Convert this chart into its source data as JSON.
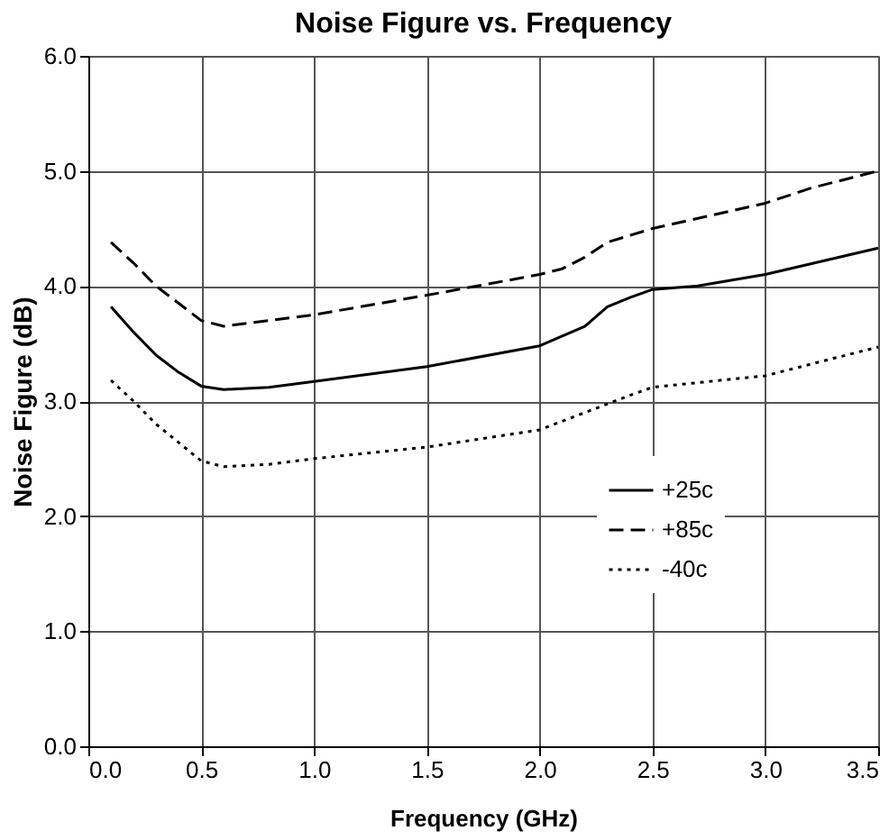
{
  "chart_data": {
    "type": "line",
    "title": "Noise Figure vs. Frequency",
    "xlabel": "Frequency (GHz)",
    "ylabel": "Noise Figure (dB)",
    "xlim": [
      0,
      3.5
    ],
    "xticks": [
      {
        "value": 0,
        "label": "0.0"
      },
      {
        "value": 0.5,
        "label": "0.5"
      },
      {
        "value": 1,
        "label": "1.0"
      },
      {
        "value": 1.5,
        "label": "1.5"
      },
      {
        "value": 2,
        "label": "2.0"
      },
      {
        "value": 2.5,
        "label": "2.5"
      },
      {
        "value": 3,
        "label": "3.0"
      },
      {
        "value": 3.5,
        "label": "3.5"
      }
    ],
    "ylim": [
      0,
      6
    ],
    "yticks": [
      {
        "value": 0,
        "label": "0.0"
      },
      {
        "value": 1,
        "label": "1.0"
      },
      {
        "value": 2,
        "label": "2.0"
      },
      {
        "value": 3,
        "label": "3.0"
      },
      {
        "value": 4,
        "label": "4.0"
      },
      {
        "value": 5,
        "label": "5.0"
      },
      {
        "value": 6,
        "label": "6.0"
      }
    ],
    "grid": true,
    "legend": "right",
    "marker": "none",
    "series": [
      {
        "name": "+25c",
        "color": "#000000",
        "line_style": "solid",
        "x": [
          0.1,
          0.2,
          0.3,
          0.4,
          0.5,
          0.6,
          0.8,
          1.0,
          1.5,
          2.0,
          2.2,
          2.3,
          2.4,
          2.5,
          2.7,
          3.0,
          3.5
        ],
        "values": [
          3.82,
          3.6,
          3.4,
          3.25,
          3.13,
          3.1,
          3.12,
          3.17,
          3.3,
          3.48,
          3.65,
          3.82,
          3.9,
          3.97,
          4.0,
          4.1,
          4.33
        ]
      },
      {
        "name": "+85c",
        "color": "#000000",
        "line_style": "dashed",
        "x": [
          0.1,
          0.2,
          0.3,
          0.5,
          0.6,
          1.0,
          1.5,
          2.0,
          2.1,
          2.2,
          2.3,
          2.5,
          3.0,
          3.2,
          3.5
        ],
        "values": [
          4.38,
          4.2,
          4.0,
          3.7,
          3.65,
          3.75,
          3.92,
          4.1,
          4.15,
          4.25,
          4.38,
          4.5,
          4.72,
          4.85,
          5.0
        ]
      },
      {
        "name": "-40c",
        "color": "#000000",
        "line_style": "dotted",
        "x": [
          0.1,
          0.2,
          0.3,
          0.5,
          0.6,
          0.8,
          1.0,
          1.5,
          2.0,
          2.2,
          2.4,
          2.5,
          3.0,
          3.5
        ],
        "values": [
          3.18,
          3.0,
          2.8,
          2.48,
          2.43,
          2.45,
          2.5,
          2.6,
          2.75,
          2.9,
          3.05,
          3.12,
          3.22,
          3.47
        ]
      }
    ]
  }
}
